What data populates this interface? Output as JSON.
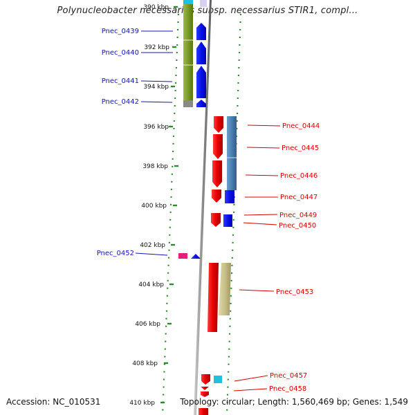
{
  "title": "Polynucleobacter necessarius subsp. necessarius STIR1, compl...",
  "footer": {
    "accession": "Accession: NC_010531",
    "topology": "Topology: circular; Length: 1,560,469 bp; Genes: 1,549"
  },
  "axis": {
    "ticks": [
      {
        "kbp": 390,
        "label": "390 kbp"
      },
      {
        "kbp": 392,
        "label": "392 kbp"
      },
      {
        "kbp": 394,
        "label": "394 kbp"
      },
      {
        "kbp": 396,
        "label": "396 kbp"
      },
      {
        "kbp": 398,
        "label": "398 kbp"
      },
      {
        "kbp": 400,
        "label": "400 kbp"
      },
      {
        "kbp": 402,
        "label": "402 kbp"
      },
      {
        "kbp": 404,
        "label": "404 kbp"
      },
      {
        "kbp": 406,
        "label": "406 kbp"
      },
      {
        "kbp": 408,
        "label": "408 kbp"
      },
      {
        "kbp": 410,
        "label": "410 kbp"
      }
    ]
  },
  "colors": {
    "forward_label": "#1414b4",
    "reverse_label": "#d40000",
    "forward_cds": "#0a14f0",
    "reverse_cds": "#e60000",
    "olive_block": "#7a9a2a",
    "steel_block": "#4a7fb0",
    "khaki_block": "#c8c088",
    "magenta_block": "#e0207a",
    "tick_green": "#2a8a2a",
    "backbone": "#8c8c8c"
  },
  "genes": {
    "left": [
      {
        "name": "Pnec_0439"
      },
      {
        "name": "Pnec_0440"
      },
      {
        "name": "Pnec_0441"
      },
      {
        "name": "Pnec_0442"
      },
      {
        "name": "Pnec_0452"
      }
    ],
    "right": [
      {
        "name": "Pnec_0444"
      },
      {
        "name": "Pnec_0445"
      },
      {
        "name": "Pnec_0446"
      },
      {
        "name": "Pnec_0447"
      },
      {
        "name": "Pnec_0449"
      },
      {
        "name": "Pnec_0450"
      },
      {
        "name": "Pnec_0453"
      },
      {
        "name": "Pnec_0457"
      },
      {
        "name": "Pnec_0458"
      }
    ]
  }
}
